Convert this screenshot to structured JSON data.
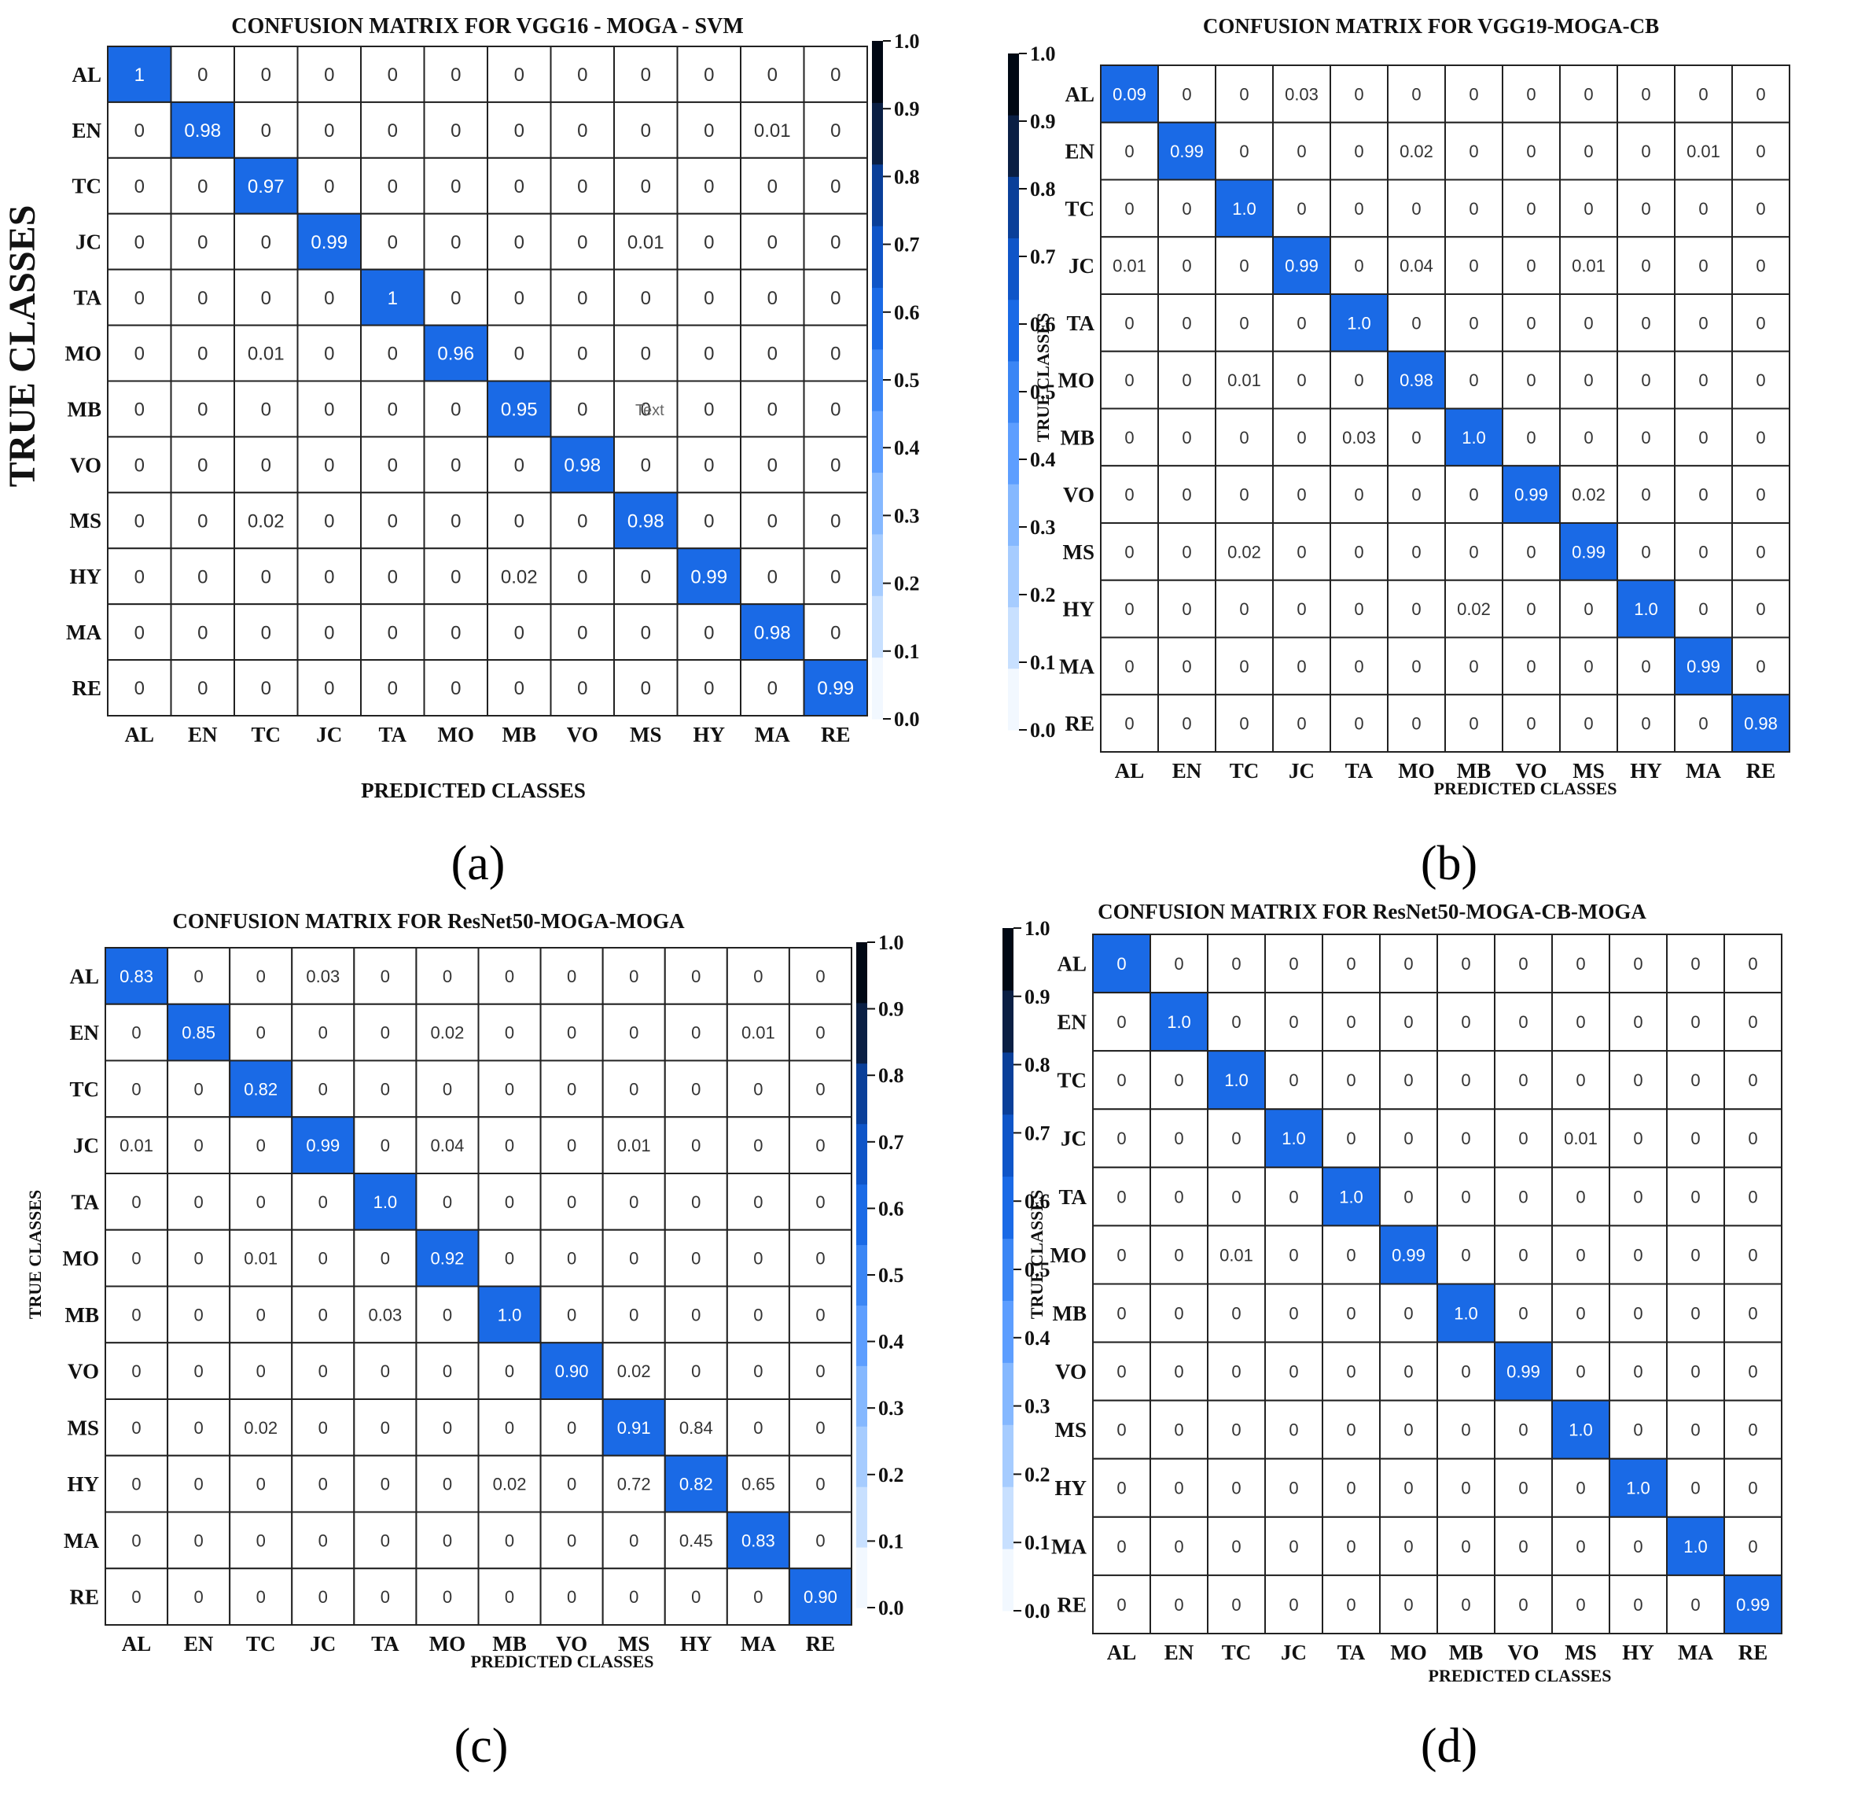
{
  "figure": {
    "colormap": [
      "#f2f8ff",
      "#c8e0ff",
      "#a6ccff",
      "#85b8ff",
      "#5d9eff",
      "#3b86f5",
      "#1a6ae6",
      "#0f55c8",
      "#0a3f99",
      "#0a1f44",
      "#000814"
    ],
    "diag_color": "#1a6ae6",
    "cell_border": "#222222"
  },
  "chart_data": [
    {
      "type": "heatmap",
      "panel_label": "(a)",
      "title": "CONFUSION MATRIX FOR VGG16 - MOGA - SVM",
      "xlabel": "PREDICTED CLASSES",
      "ylabel": "TRUE CLASSES",
      "x_categories": [
        "AL",
        "EN",
        "TC",
        "JC",
        "TA",
        "MO",
        "MB",
        "VO",
        "MS",
        "HY",
        "MA",
        "RE"
      ],
      "y_categories": [
        "AL",
        "EN",
        "TC",
        "JC",
        "TA",
        "MO",
        "MB",
        "VO",
        "MS",
        "HY",
        "MA",
        "RE"
      ],
      "values": [
        [
          "1",
          "0",
          "0",
          "0",
          "0",
          "0",
          "0",
          "0",
          "0",
          "0",
          "0",
          "0"
        ],
        [
          "0",
          "0.98",
          "0",
          "0",
          "0",
          "0",
          "0",
          "0",
          "0",
          "0",
          "0.01",
          "0"
        ],
        [
          "0",
          "0",
          "0.97",
          "0",
          "0",
          "0",
          "0",
          "0",
          "0",
          "0",
          "0",
          "0"
        ],
        [
          "0",
          "0",
          "0",
          "0.99",
          "0",
          "0",
          "0",
          "0",
          "0.01",
          "0",
          "0",
          "0"
        ],
        [
          "0",
          "0",
          "0",
          "0",
          "1",
          "0",
          "0",
          "0",
          "0",
          "0",
          "0",
          "0"
        ],
        [
          "0",
          "0",
          "0.01",
          "0",
          "0",
          "0.96",
          "0",
          "0",
          "0",
          "0",
          "0",
          "0"
        ],
        [
          "0",
          "0",
          "0",
          "0",
          "0",
          "0",
          "0.95",
          "0",
          "0",
          "0",
          "0",
          "0"
        ],
        [
          "0",
          "0",
          "0",
          "0",
          "0",
          "0",
          "0",
          "0.98",
          "0",
          "0",
          "0",
          "0"
        ],
        [
          "0",
          "0",
          "0.02",
          "0",
          "0",
          "0",
          "0",
          "0",
          "0.98",
          "0",
          "0",
          "0"
        ],
        [
          "0",
          "0",
          "0",
          "0",
          "0",
          "0",
          "0.02",
          "0",
          "0",
          "0.99",
          "0",
          "0"
        ],
        [
          "0",
          "0",
          "0",
          "0",
          "0",
          "0",
          "0",
          "0",
          "0",
          "0",
          "0.98",
          "0"
        ],
        [
          "0",
          "0",
          "0",
          "0",
          "0",
          "0",
          "0",
          "0",
          "0",
          "0",
          "0",
          "0.99"
        ]
      ],
      "annotation": "Text",
      "colorbar": {
        "range": [
          0,
          1
        ],
        "ticks": [
          "1.0",
          "0.9",
          "0.8",
          "0.7",
          "0.6",
          "0.5",
          "0.4",
          "0.3",
          "0.2",
          "0.1",
          "0.0"
        ]
      }
    },
    {
      "type": "heatmap",
      "panel_label": "(b)",
      "title": "CONFUSION MATRIX FOR VGG19-MOGA-CB",
      "xlabel": "PREDICTED CLASSES",
      "ylabel": "TRUE CLASSES",
      "x_categories": [
        "AL",
        "EN",
        "TC",
        "JC",
        "TA",
        "MO",
        "MB",
        "VO",
        "MS",
        "HY",
        "MA",
        "RE"
      ],
      "y_categories": [
        "AL",
        "EN",
        "TC",
        "JC",
        "TA",
        "MO",
        "MB",
        "VO",
        "MS",
        "HY",
        "MA",
        "RE"
      ],
      "values": [
        [
          "0.09",
          "0",
          "0",
          "0.03",
          "0",
          "0",
          "0",
          "0",
          "0",
          "0",
          "0",
          "0"
        ],
        [
          "0",
          "0.99",
          "0",
          "0",
          "0",
          "0.02",
          "0",
          "0",
          "0",
          "0",
          "0.01",
          "0"
        ],
        [
          "0",
          "0",
          "1.0",
          "0",
          "0",
          "0",
          "0",
          "0",
          "0",
          "0",
          "0",
          "0"
        ],
        [
          "0.01",
          "0",
          "0",
          "0.99",
          "0",
          "0.04",
          "0",
          "0",
          "0.01",
          "0",
          "0",
          "0"
        ],
        [
          "0",
          "0",
          "0",
          "0",
          "1.0",
          "0",
          "0",
          "0",
          "0",
          "0",
          "0",
          "0"
        ],
        [
          "0",
          "0",
          "0.01",
          "0",
          "0",
          "0.98",
          "0",
          "0",
          "0",
          "0",
          "0",
          "0"
        ],
        [
          "0",
          "0",
          "0",
          "0",
          "0.03",
          "0",
          "1.0",
          "0",
          "0",
          "0",
          "0",
          "0"
        ],
        [
          "0",
          "0",
          "0",
          "0",
          "0",
          "0",
          "0",
          "0.99",
          "0.02",
          "0",
          "0",
          "0"
        ],
        [
          "0",
          "0",
          "0.02",
          "0",
          "0",
          "0",
          "0",
          "0",
          "0.99",
          "0",
          "0",
          "0"
        ],
        [
          "0",
          "0",
          "0",
          "0",
          "0",
          "0",
          "0.02",
          "0",
          "0",
          "1.0",
          "0",
          "0"
        ],
        [
          "0",
          "0",
          "0",
          "0",
          "0",
          "0",
          "0",
          "0",
          "0",
          "0",
          "0.99",
          "0"
        ],
        [
          "0",
          "0",
          "0",
          "0",
          "0",
          "0",
          "0",
          "0",
          "0",
          "0",
          "0",
          "0.98"
        ]
      ],
      "colorbar": {
        "range": [
          0,
          1
        ],
        "ticks": [
          "1.0",
          "0.9",
          "0.8",
          "0.7",
          "0.6",
          "0.5",
          "0.4",
          "0.3",
          "0.2",
          "0.1",
          "0.0"
        ]
      }
    },
    {
      "type": "heatmap",
      "panel_label": "(c)",
      "title": "CONFUSION MATRIX FOR ResNet50-MOGA-MOGA",
      "xlabel": "PREDICTED CLASSES",
      "ylabel": "TRUE CLASSES",
      "x_categories": [
        "AL",
        "EN",
        "TC",
        "JC",
        "TA",
        "MO",
        "MB",
        "VO",
        "MS",
        "HY",
        "MA",
        "RE"
      ],
      "y_categories": [
        "AL",
        "EN",
        "TC",
        "JC",
        "TA",
        "MO",
        "MB",
        "VO",
        "MS",
        "HY",
        "MA",
        "RE"
      ],
      "values": [
        [
          "0.83",
          "0",
          "0",
          "0.03",
          "0",
          "0",
          "0",
          "0",
          "0",
          "0",
          "0",
          "0"
        ],
        [
          "0",
          "0.85",
          "0",
          "0",
          "0",
          "0.02",
          "0",
          "0",
          "0",
          "0",
          "0.01",
          "0"
        ],
        [
          "0",
          "0",
          "0.82",
          "0",
          "0",
          "0",
          "0",
          "0",
          "0",
          "0",
          "0",
          "0"
        ],
        [
          "0.01",
          "0",
          "0",
          "0.99",
          "0",
          "0.04",
          "0",
          "0",
          "0.01",
          "0",
          "0",
          "0"
        ],
        [
          "0",
          "0",
          "0",
          "0",
          "1.0",
          "0",
          "0",
          "0",
          "0",
          "0",
          "0",
          "0"
        ],
        [
          "0",
          "0",
          "0.01",
          "0",
          "0",
          "0.92",
          "0",
          "0",
          "0",
          "0",
          "0",
          "0"
        ],
        [
          "0",
          "0",
          "0",
          "0",
          "0.03",
          "0",
          "1.0",
          "0",
          "0",
          "0",
          "0",
          "0"
        ],
        [
          "0",
          "0",
          "0",
          "0",
          "0",
          "0",
          "0",
          "0.90",
          "0.02",
          "0",
          "0",
          "0"
        ],
        [
          "0",
          "0",
          "0.02",
          "0",
          "0",
          "0",
          "0",
          "0",
          "0.91",
          "0.84",
          "0",
          "0"
        ],
        [
          "0",
          "0",
          "0",
          "0",
          "0",
          "0",
          "0.02",
          "0",
          "0.72",
          "0.82",
          "0.65",
          "0"
        ],
        [
          "0",
          "0",
          "0",
          "0",
          "0",
          "0",
          "0",
          "0",
          "0",
          "0.45",
          "0.83",
          "0"
        ],
        [
          "0",
          "0",
          "0",
          "0",
          "0",
          "0",
          "0",
          "0",
          "0",
          "0",
          "0",
          "0.90"
        ]
      ],
      "colorbar": {
        "range": [
          0,
          1
        ],
        "ticks": [
          "1.0",
          "0.9",
          "0.8",
          "0.7",
          "0.6",
          "0.5",
          "0.4",
          "0.3",
          "0.2",
          "0.1",
          "0.0"
        ]
      }
    },
    {
      "type": "heatmap",
      "panel_label": "(d)",
      "title": "CONFUSION MATRIX FOR ResNet50-MOGA-CB-MOGA",
      "xlabel": "PREDICTED CLASSES",
      "ylabel": "TRUE CLASSES",
      "x_categories": [
        "AL",
        "EN",
        "TC",
        "JC",
        "TA",
        "MO",
        "MB",
        "VO",
        "MS",
        "HY",
        "MA",
        "RE"
      ],
      "y_categories": [
        "AL",
        "EN",
        "TC",
        "JC",
        "TA",
        "MO",
        "MB",
        "VO",
        "MS",
        "HY",
        "MA",
        "RE"
      ],
      "values": [
        [
          "0",
          "0",
          "0",
          "0",
          "0",
          "0",
          "0",
          "0",
          "0",
          "0",
          "0",
          "0"
        ],
        [
          "0",
          "1.0",
          "0",
          "0",
          "0",
          "0",
          "0",
          "0",
          "0",
          "0",
          "0",
          "0"
        ],
        [
          "0",
          "0",
          "1.0",
          "0",
          "0",
          "0",
          "0",
          "0",
          "0",
          "0",
          "0",
          "0"
        ],
        [
          "0",
          "0",
          "0",
          "1.0",
          "0",
          "0",
          "0",
          "0",
          "0.01",
          "0",
          "0",
          "0"
        ],
        [
          "0",
          "0",
          "0",
          "0",
          "1.0",
          "0",
          "0",
          "0",
          "0",
          "0",
          "0",
          "0"
        ],
        [
          "0",
          "0",
          "0.01",
          "0",
          "0",
          "0.99",
          "0",
          "0",
          "0",
          "0",
          "0",
          "0"
        ],
        [
          "0",
          "0",
          "0",
          "0",
          "0",
          "0",
          "1.0",
          "0",
          "0",
          "0",
          "0",
          "0"
        ],
        [
          "0",
          "0",
          "0",
          "0",
          "0",
          "0",
          "0",
          "0.99",
          "0",
          "0",
          "0",
          "0"
        ],
        [
          "0",
          "0",
          "0",
          "0",
          "0",
          "0",
          "0",
          "0",
          "1.0",
          "0",
          "0",
          "0"
        ],
        [
          "0",
          "0",
          "0",
          "0",
          "0",
          "0",
          "0",
          "0",
          "0",
          "1.0",
          "0",
          "0"
        ],
        [
          "0",
          "0",
          "0",
          "0",
          "0",
          "0",
          "0",
          "0",
          "0",
          "0",
          "1.0",
          "0"
        ],
        [
          "0",
          "0",
          "0",
          "0",
          "0",
          "0",
          "0",
          "0",
          "0",
          "0",
          "0",
          "0.99"
        ]
      ],
      "colorbar": {
        "range": [
          0,
          1
        ],
        "ticks": [
          "1.0",
          "0.9",
          "0.8",
          "0.7",
          "0.6",
          "0.5",
          "0.4",
          "0.3",
          "0.2",
          "0.1",
          "0.0"
        ]
      }
    }
  ]
}
